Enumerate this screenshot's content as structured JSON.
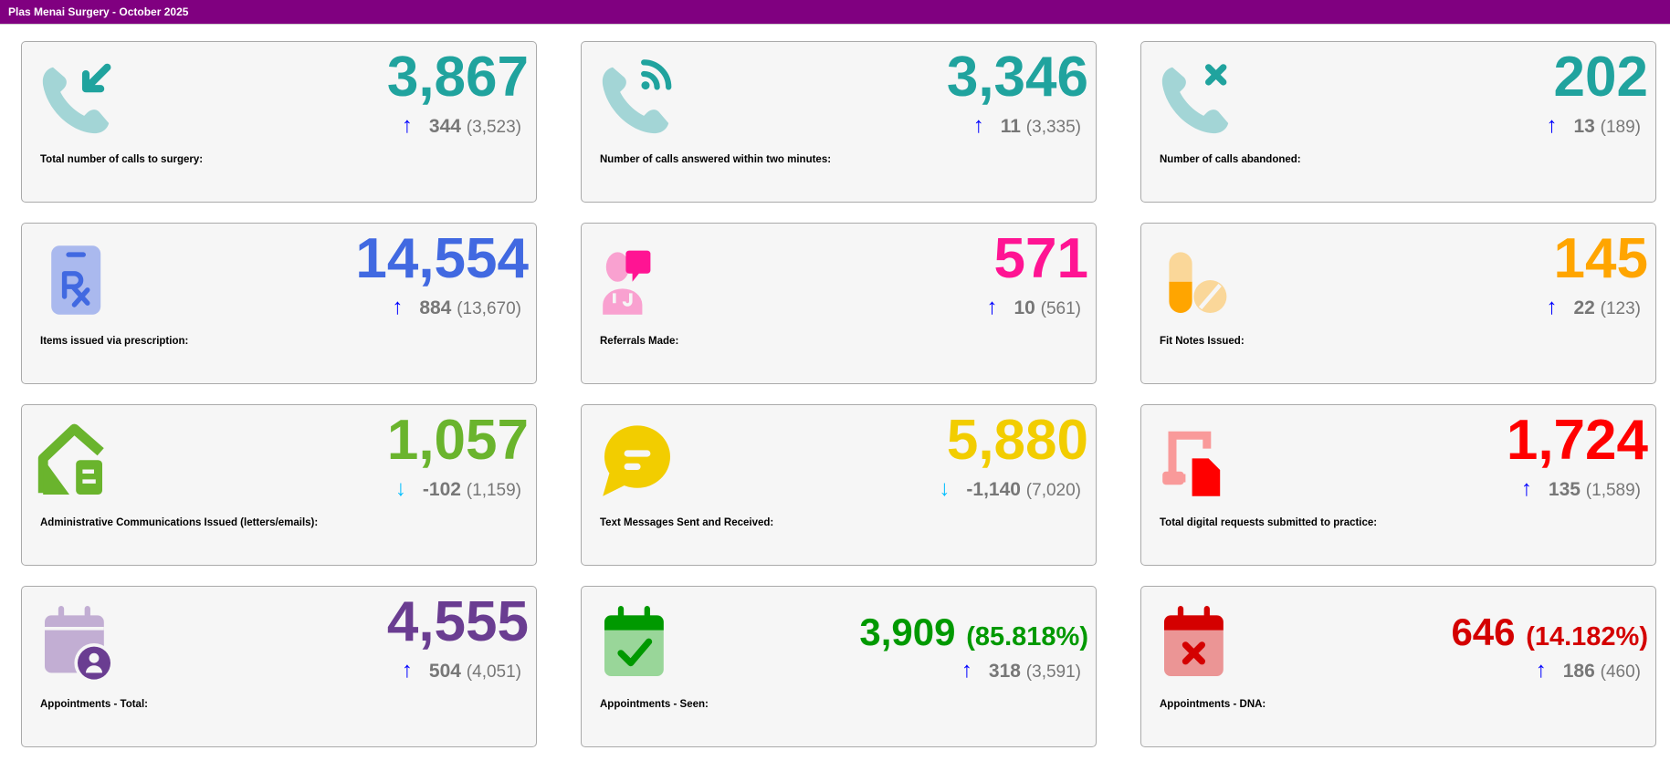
{
  "header": {
    "title": "Plas Menai Surgery - October 2025",
    "background": "#800080"
  },
  "trend_colors": {
    "up": "#0000ff",
    "down": "#00bfff"
  },
  "cards": [
    {
      "icon": "phone-incoming-icon",
      "color": "#20a39e",
      "light": "#a3d5d6",
      "value": "3,867",
      "percent": "",
      "trend": "up",
      "delta": "344",
      "previous": "(3,523)",
      "label": "Total number of calls to surgery:"
    },
    {
      "icon": "phone-answered-icon",
      "color": "#20a39e",
      "light": "#a3d5d6",
      "value": "3,346",
      "percent": "",
      "trend": "up",
      "delta": "11",
      "previous": "(3,335)",
      "label": "Number of calls answered within two minutes:"
    },
    {
      "icon": "phone-missed-icon",
      "color": "#20a39e",
      "light": "#a3d5d6",
      "value": "202",
      "percent": "",
      "trend": "up",
      "delta": "13",
      "previous": "(189)",
      "label": "Number of calls abandoned:"
    },
    {
      "icon": "prescription-clipboard-icon",
      "color": "#4169e1",
      "light": "#aab9ee",
      "value": "14,554",
      "percent": "",
      "trend": "up",
      "delta": "884",
      "previous": "(13,670)",
      "label": "Items issued via prescription:"
    },
    {
      "icon": "doctor-referral-icon",
      "color": "#ff1493",
      "light": "#f9a1d0",
      "value": "571",
      "percent": "",
      "trend": "up",
      "delta": "10",
      "previous": "(561)",
      "label": "Referrals Made:"
    },
    {
      "icon": "pills-icon",
      "color": "#ffa500",
      "light": "#fad799",
      "value": "145",
      "percent": "",
      "trend": "up",
      "delta": "22",
      "previous": "(123)",
      "label": "Fit Notes Issued:"
    },
    {
      "icon": "house-letter-icon",
      "color": "#6ab42d",
      "light": "#6ab42d",
      "value": "1,057",
      "percent": "",
      "trend": "down",
      "delta": "-102",
      "previous": "(1,159)",
      "label": "Administrative Communications Issued (letters/emails):"
    },
    {
      "icon": "chat-bubble-icon",
      "color": "#f2cd00",
      "light": "#f2cd00",
      "value": "5,880",
      "percent": "",
      "trend": "down",
      "delta": "-1,140",
      "previous": "(7,020)",
      "label": "Text Messages Sent and Received:"
    },
    {
      "icon": "digital-request-icon",
      "color": "#ff0000",
      "light": "#f99a9a",
      "value": "1,724",
      "percent": "",
      "trend": "up",
      "delta": "135",
      "previous": "(1,589)",
      "label": "Total digital requests submitted to practice:"
    },
    {
      "icon": "calendar-user-icon",
      "color": "#6a3d91",
      "light": "#c2aed3",
      "value": "4,555",
      "percent": "",
      "trend": "up",
      "delta": "504",
      "previous": "(4,051)",
      "label": "Appointments - Total:"
    },
    {
      "icon": "calendar-check-icon",
      "color": "#009900",
      "light": "#99d699",
      "value": "3,909",
      "percent": "(85.818%)",
      "trend": "up",
      "delta": "318",
      "previous": "(3,591)",
      "label": "Appointments - Seen:"
    },
    {
      "icon": "calendar-x-icon",
      "color": "#d40000",
      "light": "#eb9595",
      "value": "646",
      "percent": "(14.182%)",
      "trend": "up",
      "delta": "186",
      "previous": "(460)",
      "label": "Appointments - DNA:"
    }
  ]
}
